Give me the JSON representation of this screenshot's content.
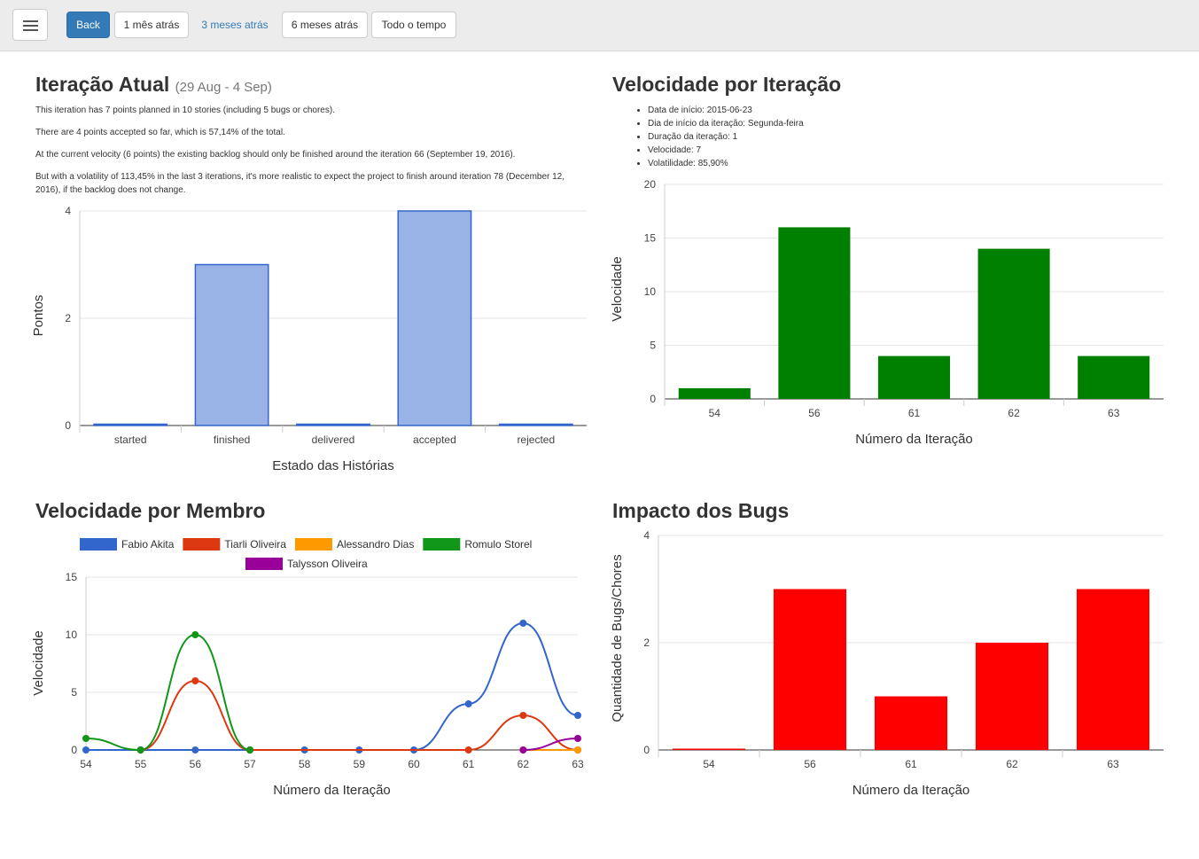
{
  "toolbar": {
    "back_label": "Back",
    "ranges": [
      "1 mês atrás",
      "3 meses atrás",
      "6 meses atrás",
      "Todo o tempo"
    ]
  },
  "current_iteration": {
    "title": "Iteração Atual",
    "date_range": "(29 Aug - 4 Sep)",
    "paragraphs": [
      "This iteration has 7 points planned in 10 stories (including 5 bugs or chores).",
      "There are 4 points accepted so far, which is 57,14% of the total.",
      "At the current velocity (6 points) the existing backlog should only be finished around the iteration 66 (September 19, 2016).",
      "But with a volatility of 113,45% in the last 3 iterations, it's more realistic to expect the project to finish around iteration 78 (December 12, 2016), if the backlog does not change."
    ]
  },
  "velocity_iteration": {
    "title": "Velocidade por Iteração",
    "info": [
      "Data de início: 2015-06-23",
      "Dia de início da iteração: Segunda-feira",
      "Duração da iteração: 1",
      "Velocidade: 7",
      "Volatilidade: 85,90%"
    ]
  },
  "velocity_member": {
    "title": "Velocidade por Membro"
  },
  "bug_impact": {
    "title": "Impacto dos Bugs"
  },
  "chart_data": [
    {
      "id": "states",
      "type": "bar",
      "categories": [
        "started",
        "finished",
        "delivered",
        "accepted",
        "rejected"
      ],
      "values": [
        0,
        3,
        0,
        4,
        0
      ],
      "xlabel": "Estado das Histórias",
      "ylabel": "Pontos",
      "ylim": [
        0,
        4
      ],
      "yticks": [
        0,
        2,
        4
      ],
      "color": "#99b3e6",
      "stroke": "#3366cc",
      "grid": true
    },
    {
      "id": "velocity",
      "type": "bar",
      "categories": [
        "54",
        "56",
        "61",
        "62",
        "63"
      ],
      "values": [
        1,
        16,
        4,
        14,
        4
      ],
      "xlabel": "Número da Iteração",
      "ylabel": "Velocidade",
      "ylim": [
        0,
        20
      ],
      "yticks": [
        0,
        5,
        10,
        15,
        20
      ],
      "color": "#008000",
      "grid": true
    },
    {
      "id": "members",
      "type": "line",
      "x": [
        "54",
        "55",
        "56",
        "57",
        "58",
        "59",
        "60",
        "61",
        "62",
        "63"
      ],
      "series": [
        {
          "name": "Fabio Akita",
          "color": "#3366cc",
          "values": [
            0,
            0,
            0,
            0,
            0,
            0,
            0,
            4,
            11,
            3
          ]
        },
        {
          "name": "Tiarli Oliveira",
          "color": "#dc3912",
          "values": [
            null,
            0,
            6,
            0,
            null,
            null,
            null,
            0,
            3,
            0
          ]
        },
        {
          "name": "Alessandro Dias",
          "color": "#ff9900",
          "values": [
            null,
            null,
            null,
            null,
            null,
            null,
            null,
            null,
            0,
            0
          ]
        },
        {
          "name": "Romulo Storel",
          "color": "#109618",
          "values": [
            1,
            0,
            10,
            0,
            null,
            null,
            null,
            null,
            null,
            null
          ]
        },
        {
          "name": "Talysson Oliveira",
          "color": "#990099",
          "values": [
            null,
            null,
            null,
            null,
            null,
            null,
            null,
            null,
            0,
            1
          ]
        }
      ],
      "xlabel": "Número da Iteração",
      "ylabel": "Velocidade",
      "ylim": [
        0,
        15
      ],
      "yticks": [
        0,
        5,
        10,
        15
      ],
      "legend": "top",
      "grid": true
    },
    {
      "id": "bugs",
      "type": "bar",
      "categories": [
        "54",
        "56",
        "61",
        "62",
        "63"
      ],
      "values": [
        0,
        3,
        1,
        2,
        3
      ],
      "xlabel": "Número da Iteração",
      "ylabel": "Quantidade de Bugs/Chores",
      "ylim": [
        0,
        4
      ],
      "yticks": [
        0,
        2,
        4
      ],
      "color": "#ff0000",
      "grid": true
    }
  ]
}
